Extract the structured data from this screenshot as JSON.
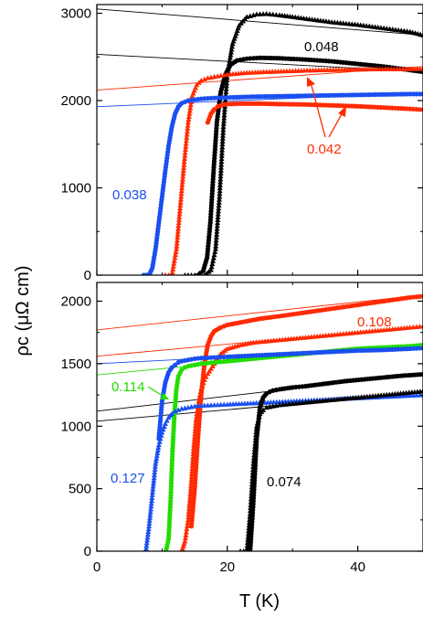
{
  "chart_data": [
    {
      "type": "scatter",
      "panel": "top",
      "xlim": [
        0,
        50
      ],
      "ylim": [
        0,
        3100
      ],
      "x_ticks": [
        "0",
        "20",
        "40"
      ],
      "y_ticks": [
        "0",
        "1000",
        "2000",
        "3000"
      ],
      "ylabel": "ρc (μΩ cm)",
      "annotations": [
        {
          "text": "0.048",
          "color": "#000000"
        },
        {
          "text": "0.042",
          "color": "#ff2a00"
        },
        {
          "text": "0.038",
          "color": "#1a4ff0"
        }
      ],
      "series": [
        {
          "color": "#000000",
          "marker": "triangle",
          "x": [
            13.5,
            15,
            16.5,
            17.5,
            18.2,
            18.8,
            19.4,
            20,
            20.8,
            21.8,
            23,
            24.5,
            26,
            28,
            30,
            33,
            36,
            40,
            44,
            48,
            50
          ],
          "y": [
            0,
            0,
            0,
            60,
            300,
            900,
            1700,
            2300,
            2650,
            2860,
            2960,
            2990,
            2995,
            2980,
            2960,
            2930,
            2900,
            2870,
            2830,
            2790,
            2750
          ]
        },
        {
          "color": "#000000",
          "marker": "circle",
          "x": [
            15.5,
            16.3,
            16.9,
            17.4,
            17.9,
            18.4,
            19,
            19.7,
            20.5,
            21.5,
            23,
            25,
            28,
            32,
            36,
            40,
            44,
            48,
            50
          ],
          "y": [
            0,
            50,
            200,
            600,
            1200,
            1750,
            2100,
            2300,
            2410,
            2460,
            2480,
            2490,
            2485,
            2470,
            2450,
            2420,
            2390,
            2350,
            2330
          ]
        },
        {
          "color": "#ff2a00",
          "marker": "triangle",
          "x": [
            10.5,
            11.5,
            12.2,
            12.8,
            13.4,
            14,
            14.6,
            15.3,
            16,
            17,
            18.5,
            20,
            23,
            26,
            30,
            34,
            38,
            42,
            46,
            50
          ],
          "y": [
            0,
            0,
            300,
            800,
            1300,
            1750,
            2050,
            2180,
            2230,
            2260,
            2280,
            2300,
            2320,
            2330,
            2340,
            2350,
            2355,
            2360,
            2362,
            2365
          ]
        },
        {
          "color": "#ff2a00",
          "marker": "circle",
          "x": [
            17,
            17.5,
            18,
            18.5,
            19.2,
            20,
            22,
            25,
            28,
            32,
            36,
            40,
            44,
            48,
            50
          ],
          "y": [
            1750,
            1850,
            1900,
            1930,
            1950,
            1960,
            1965,
            1965,
            1960,
            1955,
            1945,
            1935,
            1920,
            1905,
            1895
          ]
        },
        {
          "color": "#1a4ff0",
          "marker": "circle",
          "x": [
            7.2,
            8,
            8.5,
            9,
            9.5,
            10,
            10.5,
            11,
            11.5,
            12,
            12.5,
            13,
            14,
            15,
            16,
            18,
            20,
            24,
            28,
            32,
            36,
            40,
            44,
            48,
            50
          ],
          "y": [
            0,
            0,
            80,
            300,
            600,
            900,
            1200,
            1480,
            1700,
            1850,
            1930,
            1970,
            2000,
            2010,
            2020,
            2030,
            2035,
            2045,
            2050,
            2055,
            2060,
            2065,
            2070,
            2075,
            2075
          ]
        }
      ],
      "fit_lines": [
        {
          "color": "#000000",
          "x": [
            0,
            50
          ],
          "y": [
            3050,
            2750
          ]
        },
        {
          "color": "#000000",
          "x": [
            0,
            50
          ],
          "y": [
            2530,
            2330
          ]
        },
        {
          "color": "#ff2a00",
          "x": [
            0,
            50
          ],
          "y": [
            2120,
            2390
          ]
        },
        {
          "color": "#1a4ff0",
          "x": [
            0,
            50
          ],
          "y": [
            1930,
            2090
          ]
        }
      ]
    },
    {
      "type": "scatter",
      "panel": "bottom",
      "xlim": [
        0,
        50
      ],
      "ylim": [
        0,
        2150
      ],
      "x_ticks": [
        "0",
        "20",
        "40"
      ],
      "y_ticks": [
        "0",
        "500",
        "1000",
        "1500",
        "2000"
      ],
      "xlabel": "T (K)",
      "annotations": [
        {
          "text": "0.108",
          "color": "#ff2a00"
        },
        {
          "text": "0.114",
          "color": "#22dd00"
        },
        {
          "text": "0.127",
          "color": "#1a4ff0"
        },
        {
          "text": "0.074",
          "color": "#000000"
        }
      ],
      "series": [
        {
          "color": "#ff2a00",
          "marker": "circle",
          "x": [
            14.5,
            15,
            15.5,
            16,
            16.5,
            17,
            17.5,
            18,
            19,
            20,
            22,
            25,
            28,
            32,
            36,
            40,
            44,
            48,
            50
          ],
          "y": [
            200,
            500,
            900,
            1250,
            1500,
            1650,
            1720,
            1760,
            1790,
            1810,
            1830,
            1860,
            1880,
            1910,
            1940,
            1970,
            2000,
            2030,
            2040
          ]
        },
        {
          "color": "#ff2a00",
          "marker": "triangle",
          "x": [
            13,
            13.5,
            14,
            14.4,
            14.8,
            15.2,
            15.6,
            16,
            16.5,
            17,
            17.5,
            18,
            18.5,
            19,
            20,
            22,
            24,
            28,
            32,
            36,
            40,
            44,
            48,
            50
          ],
          "y": [
            0,
            80,
            250,
            500,
            800,
            1050,
            1200,
            1300,
            1370,
            1420,
            1460,
            1500,
            1540,
            1580,
            1620,
            1650,
            1670,
            1690,
            1710,
            1730,
            1750,
            1770,
            1790,
            1800
          ]
        },
        {
          "color": "#22dd00",
          "marker": "circle",
          "x": [
            10.6,
            11,
            11.3,
            11.6,
            11.9,
            12.2,
            12.5,
            13,
            13.5,
            14,
            15,
            16,
            18,
            20,
            24,
            28,
            32,
            36,
            40,
            44,
            48,
            50
          ],
          "y": [
            0,
            100,
            400,
            800,
            1100,
            1300,
            1400,
            1450,
            1470,
            1480,
            1490,
            1500,
            1510,
            1520,
            1540,
            1560,
            1580,
            1600,
            1620,
            1630,
            1640,
            1650
          ]
        },
        {
          "color": "#1a4ff0",
          "marker": "circle",
          "x": [
            9.5,
            10,
            10.5,
            11,
            11.5,
            12,
            12.5,
            13,
            14,
            15,
            16,
            18,
            20,
            24,
            28,
            32,
            36,
            40,
            44,
            48,
            50
          ],
          "y": [
            900,
            1200,
            1350,
            1430,
            1470,
            1490,
            1510,
            1520,
            1530,
            1540,
            1545,
            1550,
            1555,
            1565,
            1575,
            1585,
            1595,
            1605,
            1610,
            1620,
            1625
          ]
        },
        {
          "color": "#1a4ff0",
          "marker": "triangle",
          "x": [
            7.5,
            8,
            8.5,
            9,
            9.5,
            10,
            10.5,
            11,
            11.5,
            12,
            13,
            14,
            15,
            16,
            18,
            20,
            24,
            28,
            32,
            36,
            40,
            44,
            48,
            50
          ],
          "y": [
            0,
            200,
            450,
            700,
            850,
            950,
            1020,
            1070,
            1100,
            1120,
            1140,
            1150,
            1160,
            1165,
            1170,
            1175,
            1185,
            1195,
            1205,
            1215,
            1225,
            1235,
            1245,
            1250
          ]
        },
        {
          "color": "#000000",
          "marker": "circle",
          "x": [
            23.5,
            24,
            24.5,
            25,
            25.5,
            26,
            26.5,
            27,
            28,
            30,
            32,
            35,
            38,
            41,
            44,
            47,
            50
          ],
          "y": [
            0,
            400,
            900,
            1150,
            1230,
            1260,
            1275,
            1285,
            1295,
            1310,
            1320,
            1340,
            1360,
            1375,
            1390,
            1405,
            1415
          ]
        },
        {
          "color": "#000000",
          "marker": "triangle",
          "x": [
            22,
            23,
            23.5,
            24,
            24.5,
            25,
            25.5,
            26,
            27,
            28,
            30,
            32,
            35,
            38,
            41,
            44,
            47,
            50
          ],
          "y": [
            0,
            0,
            300,
            700,
            1000,
            1100,
            1130,
            1150,
            1160,
            1170,
            1180,
            1190,
            1205,
            1220,
            1235,
            1250,
            1265,
            1280
          ]
        }
      ],
      "fit_lines": [
        {
          "color": "#ff2a00",
          "x": [
            0,
            50
          ],
          "y": [
            1770,
            2050
          ]
        },
        {
          "color": "#ff2a00",
          "x": [
            0,
            50
          ],
          "y": [
            1560,
            1800
          ]
        },
        {
          "color": "#22dd00",
          "x": [
            0,
            50
          ],
          "y": [
            1410,
            1660
          ]
        },
        {
          "color": "#1a4ff0",
          "x": [
            0,
            50
          ],
          "y": [
            1500,
            1630
          ]
        },
        {
          "color": "#000000",
          "x": [
            0,
            50
          ],
          "y": [
            1120,
            1420
          ]
        },
        {
          "color": "#000000",
          "x": [
            0,
            50
          ],
          "y": [
            1040,
            1270
          ]
        }
      ]
    }
  ]
}
